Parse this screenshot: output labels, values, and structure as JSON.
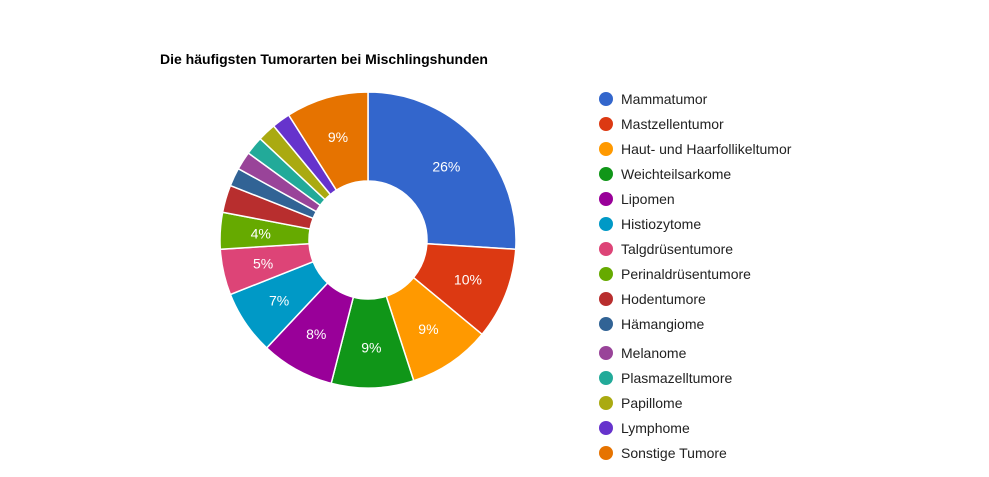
{
  "chart_data": {
    "type": "pie",
    "donut": true,
    "title": "Die häufigsten Tumorarten bei Mischlingshunden",
    "legend_position": "right",
    "slices": [
      {
        "label": "Mammatumor",
        "value": 26,
        "color": "#3366cc",
        "data_label": "26%"
      },
      {
        "label": "Mastzellentumor",
        "value": 10,
        "color": "#dc3912",
        "data_label": "10%"
      },
      {
        "label": "Haut- und Haarfollikeltumor",
        "value": 9,
        "color": "#ff9900",
        "data_label": "9%"
      },
      {
        "label": "Weichteilsarkome",
        "value": 9,
        "color": "#109618",
        "data_label": "9%"
      },
      {
        "label": "Lipomen",
        "value": 8,
        "color": "#990099",
        "data_label": "8%"
      },
      {
        "label": "Histiozytome",
        "value": 7,
        "color": "#0099c6",
        "data_label": "7%"
      },
      {
        "label": "Talgdrüsentumore",
        "value": 5,
        "color": "#dd4477",
        "data_label": "5%"
      },
      {
        "label": "Perinaldrüsentumore",
        "value": 4,
        "color": "#66aa00",
        "data_label": "4%"
      },
      {
        "label": "Hodentumore",
        "value": 3,
        "color": "#b82e2e",
        "data_label": ""
      },
      {
        "label": "Hämangiome",
        "value": 2,
        "color": "#316395",
        "data_label": ""
      },
      {
        "label": "Melanome",
        "value": 2,
        "color": "#994499",
        "data_label": ""
      },
      {
        "label": "Plasmazelltumore",
        "value": 2,
        "color": "#22aa99",
        "data_label": ""
      },
      {
        "label": "Papillome",
        "value": 2,
        "color": "#aaaa11",
        "data_label": ""
      },
      {
        "label": "Lymphome",
        "value": 2,
        "color": "#6633cc",
        "data_label": ""
      },
      {
        "label": "Sonstige Tumore",
        "value": 9,
        "color": "#e67300",
        "data_label": "9%"
      }
    ]
  }
}
